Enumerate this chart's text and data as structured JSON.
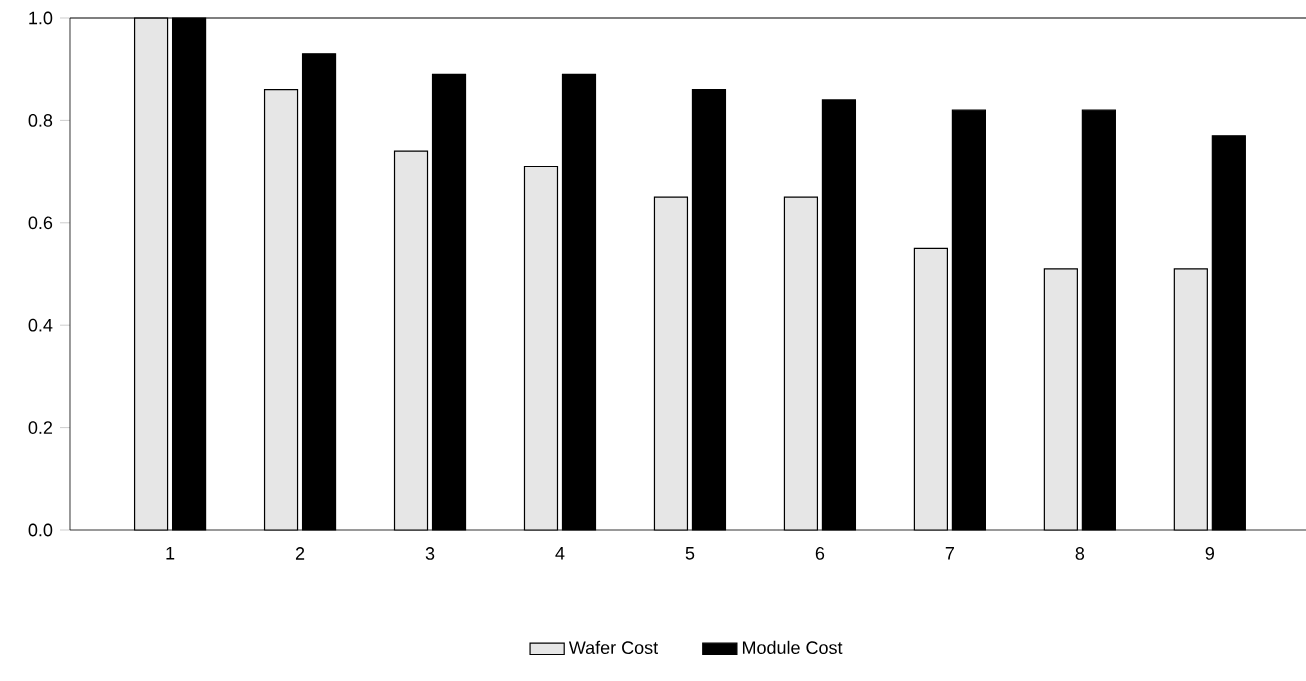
{
  "chart_data": {
    "type": "bar",
    "categories": [
      "1",
      "2",
      "3",
      "4",
      "5",
      "6",
      "7",
      "8",
      "9"
    ],
    "series": [
      {
        "name": "Wafer Cost",
        "color": "#e6e6e6",
        "values": [
          1.0,
          0.86,
          0.74,
          0.71,
          0.65,
          0.65,
          0.55,
          0.51,
          0.51
        ]
      },
      {
        "name": "Module Cost",
        "color": "#000000",
        "values": [
          1.0,
          0.93,
          0.89,
          0.89,
          0.86,
          0.84,
          0.82,
          0.82,
          0.77
        ]
      }
    ],
    "ylim": [
      0,
      1.0
    ],
    "yticks": [
      {
        "value": 0,
        "label": "0.0"
      },
      {
        "value": 0.2,
        "label": "0.2"
      },
      {
        "value": 0.4,
        "label": "0.4"
      },
      {
        "value": 0.6,
        "label": "0.6"
      },
      {
        "value": 0.8,
        "label": "0.8"
      },
      {
        "value": 1.0,
        "label": "1.0"
      }
    ],
    "legend": "bottom"
  }
}
